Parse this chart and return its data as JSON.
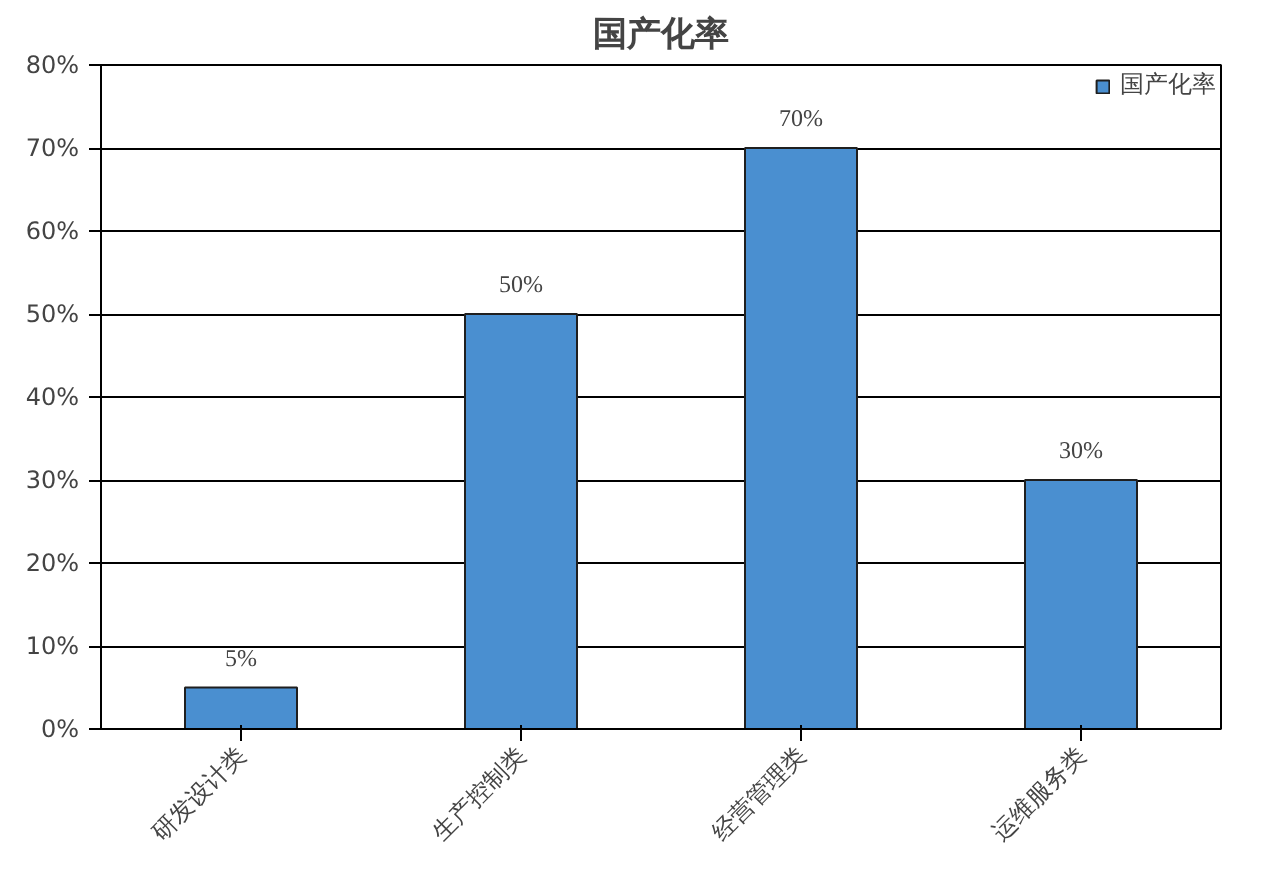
{
  "chart_data": {
    "type": "bar",
    "title": "国产化率",
    "categories": [
      "研发设计类",
      "生产控制类",
      "经营管理类",
      "运维服务类"
    ],
    "series": [
      {
        "name": "国产化率",
        "color": "#4a8fd0",
        "values": [
          5,
          50,
          70,
          30
        ]
      }
    ],
    "value_labels": [
      "5%",
      "50%",
      "70%",
      "30%"
    ],
    "ylim": [
      0,
      80
    ],
    "yticks": [
      {
        "value": 0,
        "label": "0%"
      },
      {
        "value": 10,
        "label": "10%"
      },
      {
        "value": 20,
        "label": "20%"
      },
      {
        "value": 30,
        "label": "30%"
      },
      {
        "value": 40,
        "label": "40%"
      },
      {
        "value": 50,
        "label": "50%"
      },
      {
        "value": 60,
        "label": "60%"
      },
      {
        "value": 70,
        "label": "70%"
      },
      {
        "value": 80,
        "label": "80%"
      }
    ],
    "grid": "y",
    "legend": "top right"
  }
}
